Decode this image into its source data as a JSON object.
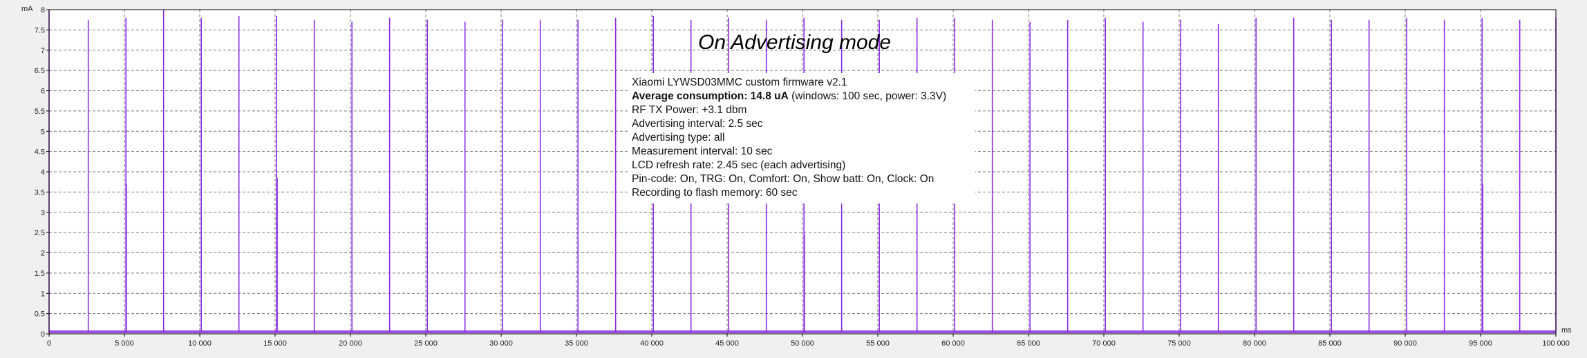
{
  "chart_data": {
    "type": "line",
    "title": "On Advertising mode",
    "ylabel": "mA",
    "xlabel": "ms",
    "ylim": [
      0,
      8
    ],
    "xlim": [
      0,
      100000
    ],
    "yticks": [
      "0",
      "0.5",
      "1",
      "1.5",
      "2",
      "2.5",
      "3",
      "3.5",
      "4",
      "4.5",
      "5",
      "5.5",
      "6",
      "6.5",
      "7",
      "7.5",
      "8"
    ],
    "xticks": [
      "0",
      "5 000",
      "10 000",
      "15 000",
      "20 000",
      "25 000",
      "30 000",
      "35 000",
      "40 000",
      "45 000",
      "50 000",
      "55 000",
      "60 000",
      "65 000",
      "70 000",
      "75 000",
      "80 000",
      "85 000",
      "90 000",
      "95 000",
      "100 000"
    ],
    "grid": true,
    "series": [
      {
        "color": "#8a2be2",
        "baseline": 0.05,
        "peaks": [
          {
            "x": 0,
            "y": 8.0
          },
          {
            "x": 2600,
            "y": 7.75
          },
          {
            "x": 5100,
            "y": 7.8
          },
          {
            "x": 5130,
            "y": 3.7
          },
          {
            "x": 7600,
            "y": 8.0
          },
          {
            "x": 10100,
            "y": 7.8
          },
          {
            "x": 12600,
            "y": 7.85
          },
          {
            "x": 15100,
            "y": 7.85
          },
          {
            "x": 15140,
            "y": 3.85
          },
          {
            "x": 17600,
            "y": 7.75
          },
          {
            "x": 20100,
            "y": 7.7
          },
          {
            "x": 22600,
            "y": 7.8
          },
          {
            "x": 25100,
            "y": 7.75
          },
          {
            "x": 27600,
            "y": 7.7
          },
          {
            "x": 30100,
            "y": 7.75
          },
          {
            "x": 32600,
            "y": 7.75
          },
          {
            "x": 35100,
            "y": 7.75
          },
          {
            "x": 37600,
            "y": 7.8
          },
          {
            "x": 40100,
            "y": 7.85
          },
          {
            "x": 42600,
            "y": 7.75
          },
          {
            "x": 45100,
            "y": 7.8
          },
          {
            "x": 47600,
            "y": 7.75
          },
          {
            "x": 50100,
            "y": 7.8
          },
          {
            "x": 50130,
            "y": 2.45
          },
          {
            "x": 52600,
            "y": 7.75
          },
          {
            "x": 55100,
            "y": 7.75
          },
          {
            "x": 57600,
            "y": 7.8
          },
          {
            "x": 60100,
            "y": 7.8
          },
          {
            "x": 62600,
            "y": 7.75
          },
          {
            "x": 65100,
            "y": 7.7
          },
          {
            "x": 67600,
            "y": 7.75
          },
          {
            "x": 70100,
            "y": 7.8
          },
          {
            "x": 72600,
            "y": 7.7
          },
          {
            "x": 75100,
            "y": 7.75
          },
          {
            "x": 77600,
            "y": 7.65
          },
          {
            "x": 80100,
            "y": 7.8
          },
          {
            "x": 82600,
            "y": 7.8
          },
          {
            "x": 85100,
            "y": 7.75
          },
          {
            "x": 87600,
            "y": 7.75
          },
          {
            "x": 90100,
            "y": 7.8
          },
          {
            "x": 92600,
            "y": 7.75
          },
          {
            "x": 95100,
            "y": 7.8
          },
          {
            "x": 95140,
            "y": 3.7
          },
          {
            "x": 97600,
            "y": 7.75
          },
          {
            "x": 100000,
            "y": 7.8
          }
        ]
      }
    ],
    "annotation": {
      "lines": [
        {
          "text": "Xiaomi LYWSD03MMC custom firmware v2.1"
        },
        {
          "bold": "Average consumption: 14.8 uA",
          "text": " (windows: 100 sec, power: 3.3V)"
        },
        {
          "text": "RF TX Power: +3.1 dbm"
        },
        {
          "text": "Advertising interval: 2.5 sec"
        },
        {
          "text": "Advertising type: all"
        },
        {
          "text": "Measurement interval: 10 sec"
        },
        {
          "text": "LCD refresh rate: 2.45 sec (each advertising)"
        },
        {
          "text": "Pin-code: On, TRG: On, Comfort: On, Show batt: On, Clock: On"
        },
        {
          "text": "Recording to flash memory: 60 sec"
        }
      ]
    }
  }
}
